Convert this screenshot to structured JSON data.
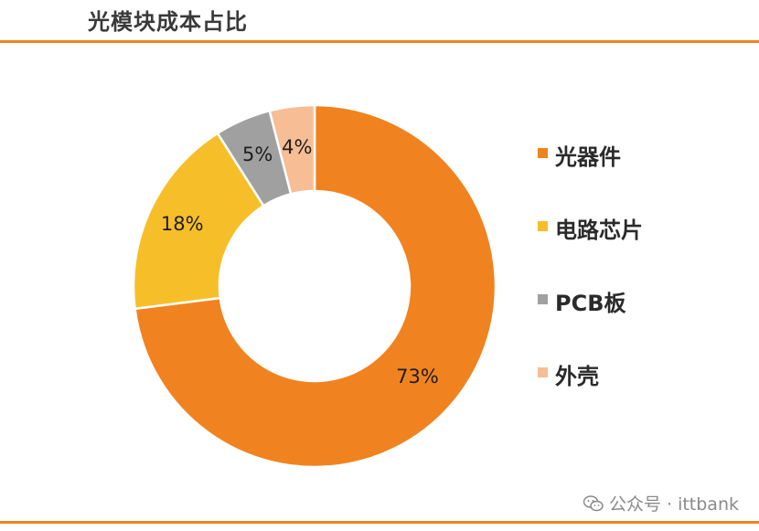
{
  "header": {
    "title": "光模块成本占比"
  },
  "chart_data": {
    "type": "pie",
    "donut": true,
    "categories": [
      "光器件",
      "电路芯片",
      "PCB板",
      "外壳"
    ],
    "values": [
      73,
      18,
      5,
      4
    ],
    "labels": [
      "73%",
      "18%",
      "5%",
      "4%"
    ],
    "colors": [
      "#f0831f",
      "#f6bf2a",
      "#a0a0a0",
      "#f7bd95"
    ],
    "legend_position": "right"
  },
  "legend": {
    "items": [
      {
        "label": "光器件",
        "color": "#f0831f"
      },
      {
        "label": "电路芯片",
        "color": "#f6bf2a"
      },
      {
        "label": "PCB板",
        "color": "#a0a0a0"
      },
      {
        "label": "外壳",
        "color": "#f7bd95"
      }
    ]
  },
  "watermark": {
    "text": "公众号 · ittbank",
    "icon": "wechat-icon"
  },
  "colors": {
    "accent": "#f0831f"
  }
}
